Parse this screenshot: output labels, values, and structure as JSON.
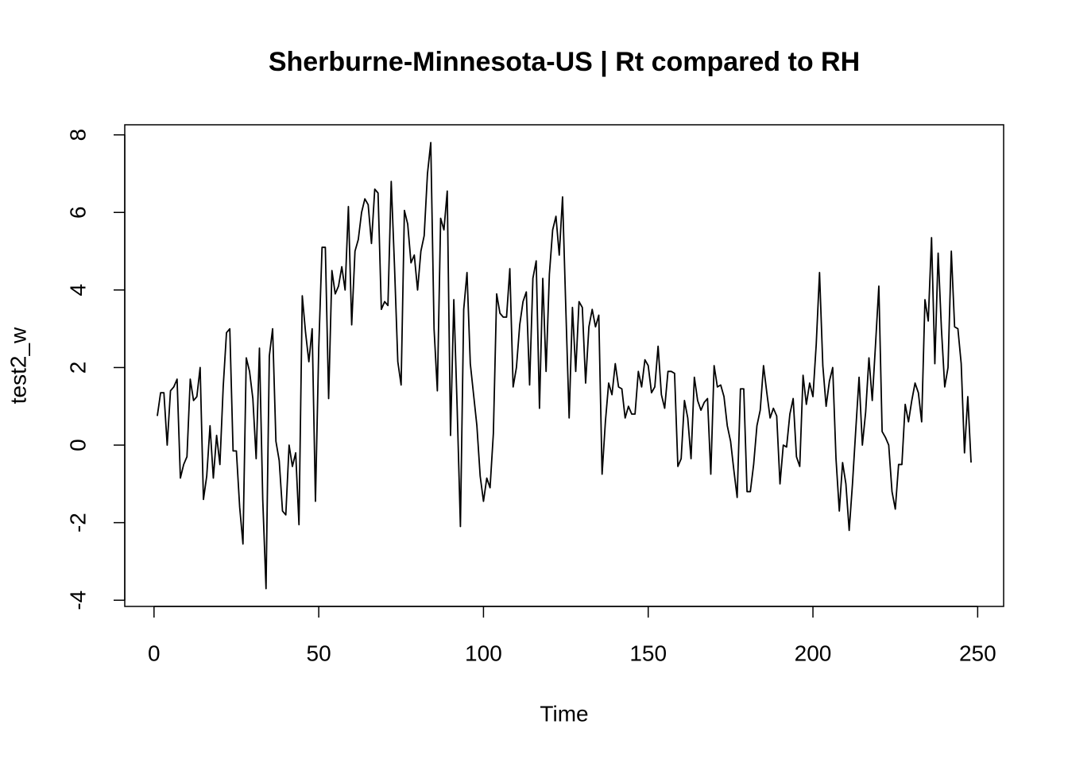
{
  "chart_data": {
    "type": "line",
    "title": "Sherburne-Minnesota-US | Rt compared to RH",
    "x_label": "Time",
    "y_label": "test2_w",
    "color": "#000000",
    "xlim": [
      -8.88,
      257.88
    ],
    "ylim": [
      -4.16,
      8.26
    ],
    "xticks": [
      0,
      50,
      100,
      150,
      200,
      250
    ],
    "yticks": [
      -4,
      -2,
      0,
      2,
      4,
      6,
      8
    ],
    "x": [
      1,
      2,
      3,
      4,
      5,
      6,
      7,
      8,
      9,
      10,
      11,
      12,
      13,
      14,
      15,
      16,
      17,
      18,
      19,
      20,
      21,
      22,
      23,
      24,
      25,
      26,
      27,
      28,
      29,
      30,
      31,
      32,
      33,
      34,
      35,
      36,
      37,
      38,
      39,
      40,
      41,
      42,
      43,
      44,
      45,
      46,
      47,
      48,
      49,
      50,
      51,
      52,
      53,
      54,
      55,
      56,
      57,
      58,
      59,
      60,
      61,
      62,
      63,
      64,
      65,
      66,
      67,
      68,
      69,
      70,
      71,
      72,
      73,
      74,
      75,
      76,
      77,
      78,
      79,
      80,
      81,
      82,
      83,
      84,
      85,
      86,
      87,
      88,
      89,
      90,
      91,
      92,
      93,
      94,
      95,
      96,
      97,
      98,
      99,
      100,
      101,
      102,
      103,
      104,
      105,
      106,
      107,
      108,
      109,
      110,
      111,
      112,
      113,
      114,
      115,
      116,
      117,
      118,
      119,
      120,
      121,
      122,
      123,
      124,
      125,
      126,
      127,
      128,
      129,
      130,
      131,
      132,
      133,
      134,
      135,
      136,
      137,
      138,
      139,
      140,
      141,
      142,
      143,
      144,
      145,
      146,
      147,
      148,
      149,
      150,
      151,
      152,
      153,
      154,
      155,
      156,
      157,
      158,
      159,
      160,
      161,
      162,
      163,
      164,
      165,
      166,
      167,
      168,
      169,
      170,
      171,
      172,
      173,
      174,
      175,
      176,
      177,
      178,
      179,
      180,
      181,
      182,
      183,
      184,
      185,
      186,
      187,
      188,
      189,
      190,
      191,
      192,
      193,
      194,
      195,
      196,
      197,
      198,
      199,
      200,
      201,
      202,
      203,
      204,
      205,
      206,
      207,
      208,
      209,
      210,
      211,
      212,
      213,
      214,
      215,
      216,
      217,
      218,
      219,
      220,
      221,
      222,
      223,
      224,
      225,
      226,
      227,
      228,
      229,
      230,
      231,
      232,
      233,
      234,
      235,
      236,
      237,
      238,
      239,
      240,
      241,
      242,
      243,
      244,
      245,
      246,
      247,
      248
    ],
    "values": [
      0.75,
      1.35,
      1.35,
      0,
      1.4,
      1.5,
      1.7,
      -0.85,
      -0.5,
      -0.3,
      1.7,
      1.15,
      1.25,
      2,
      -1.4,
      -0.8,
      0.5,
      -0.85,
      0.25,
      -0.5,
      1.5,
      2.9,
      3,
      -0.15,
      -0.15,
      -1.6,
      -2.55,
      2.25,
      1.9,
      1.2,
      -0.35,
      2.5,
      -1.4,
      -3.7,
      2.3,
      3,
      0.1,
      -0.4,
      -1.7,
      -1.8,
      0,
      -0.55,
      -0.2,
      -2.05,
      3.85,
      2.9,
      2.15,
      3,
      -1.45,
      2.5,
      5.1,
      5.1,
      1.2,
      4.5,
      3.9,
      4.1,
      4.6,
      4,
      6.15,
      3.1,
      5,
      5.3,
      6,
      6.35,
      6.2,
      5.2,
      6.6,
      6.5,
      3.5,
      3.7,
      3.6,
      6.8,
      4.6,
      2.15,
      1.55,
      6.05,
      5.7,
      4.7,
      4.9,
      4,
      5,
      5.4,
      7,
      7.8,
      3,
      1.4,
      5.85,
      5.55,
      6.55,
      0.25,
      3.75,
      1,
      -2.1,
      3.5,
      4.45,
      2.1,
      1.3,
      0.5,
      -0.8,
      -1.45,
      -0.85,
      -1.1,
      0.3,
      3.9,
      3.4,
      3.3,
      3.3,
      4.55,
      1.5,
      2,
      3.1,
      3.7,
      3.95,
      1.55,
      4.3,
      4.75,
      0.95,
      4.3,
      1.9,
      4.4,
      5.55,
      5.9,
      4.9,
      6.4,
      3.5,
      0.7,
      3.55,
      1.9,
      3.7,
      3.55,
      1.6,
      3.05,
      3.5,
      3.05,
      3.35,
      -0.75,
      0.6,
      1.6,
      1.3,
      2.1,
      1.5,
      1.45,
      0.7,
      1,
      0.8,
      0.8,
      1.9,
      1.5,
      2.2,
      2.05,
      1.35,
      1.5,
      2.55,
      1.3,
      0.95,
      1.9,
      1.9,
      1.85,
      -0.55,
      -0.35,
      1.15,
      0.7,
      -0.35,
      1.75,
      1.15,
      0.9,
      1.1,
      1.2,
      -0.75,
      2.05,
      1.5,
      1.55,
      1.25,
      0.5,
      0.1,
      -0.65,
      -1.35,
      1.45,
      1.45,
      -1.2,
      -1.2,
      -0.5,
      0.5,
      0.9,
      2.05,
      1.35,
      0.7,
      0.95,
      0.75,
      -1,
      0,
      -0.05,
      0.8,
      1.2,
      -0.3,
      -0.55,
      1.8,
      1.05,
      1.6,
      1.25,
      2.6,
      4.45,
      2.05,
      1,
      1.65,
      2,
      -0.35,
      -1.7,
      -0.45,
      -1,
      -2.2,
      -1,
      0.4,
      1.75,
      0,
      0.85,
      2.25,
      1.15,
      2.6,
      4.1,
      0.35,
      0.2,
      0,
      -1.2,
      -1.65,
      -0.5,
      -0.5,
      1.05,
      0.6,
      1.15,
      1.6,
      1.35,
      0.6,
      3.75,
      3.2,
      5.35,
      2.1,
      4.95,
      3,
      1.5,
      2,
      5,
      3.05,
      3,
      2.1,
      -0.2,
      1.25,
      -0.45
    ]
  }
}
